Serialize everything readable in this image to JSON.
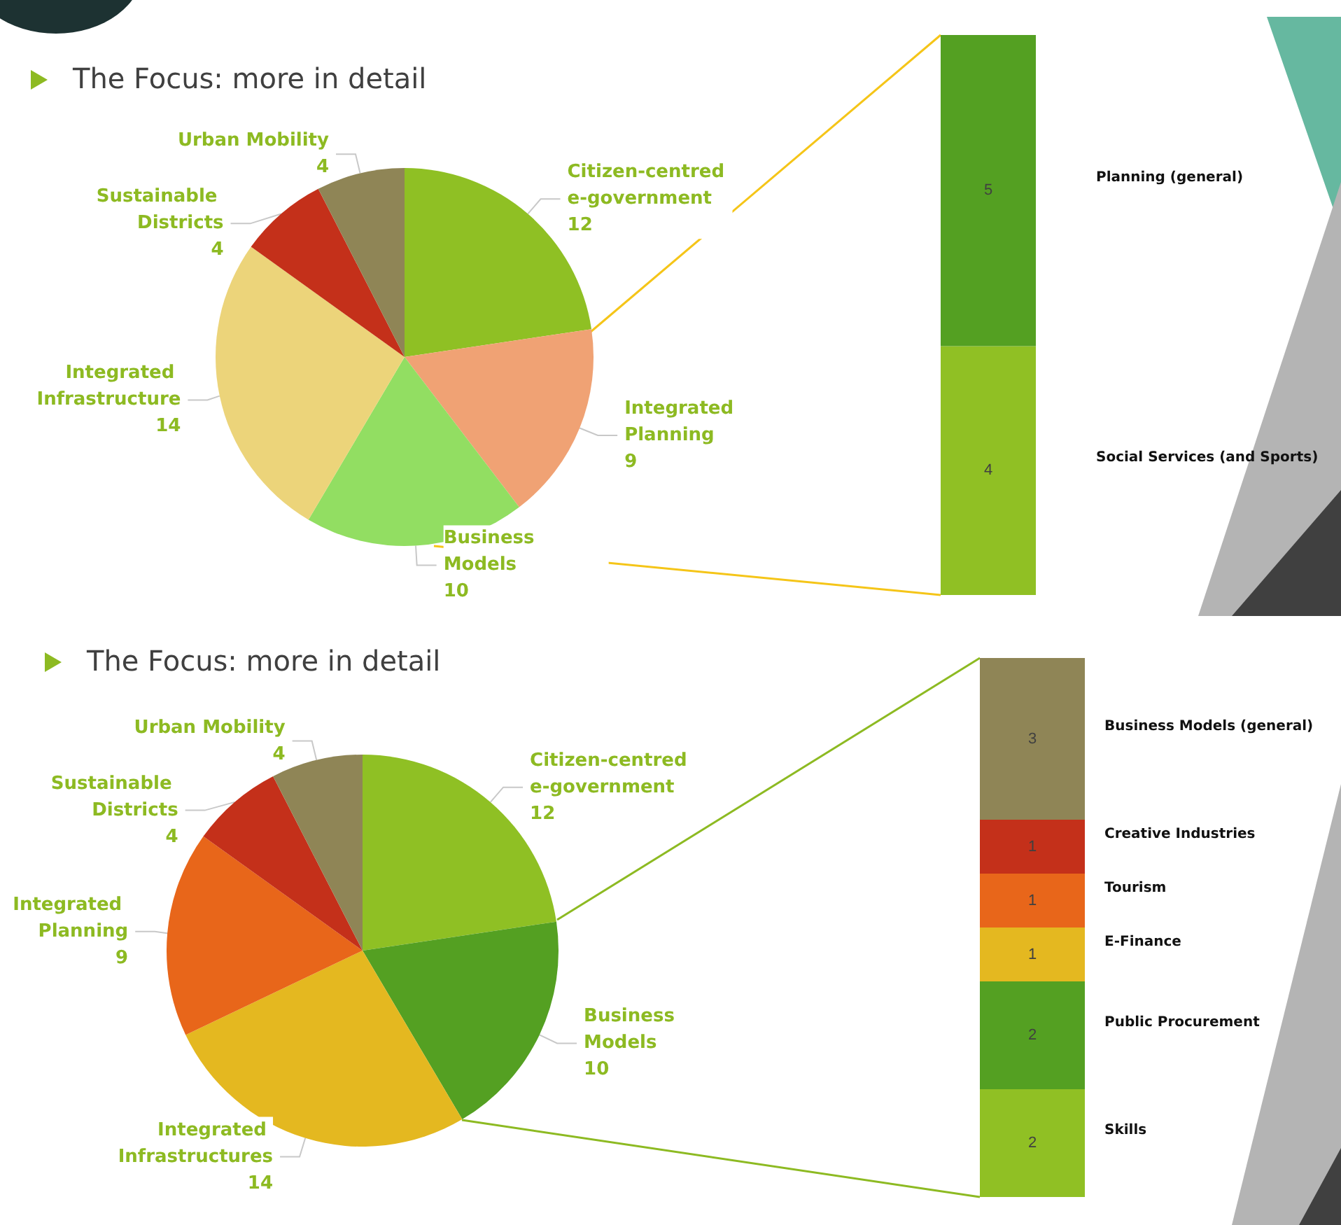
{
  "chart_data": [
    {
      "type": "pie",
      "title": "The Focus: more in detail",
      "data_labels": true,
      "categories": [
        "Citizen-centred e-government",
        "Integrated Planning",
        "Business Models",
        "Integrated Infrastructure",
        "Sustainable Districts",
        "Urban Mobility"
      ],
      "values": [
        12,
        9,
        10,
        14,
        4,
        4
      ],
      "colors": [
        "#8fc024",
        "#f0a274",
        "#92de62",
        "#ecd47a",
        "#c4301a",
        "#8f8556"
      ]
    },
    {
      "type": "bar",
      "stacked": true,
      "data_labels": true,
      "categories": [
        null
      ],
      "series": [
        {
          "name": "Social Services (and Sports)",
          "color": "#90c024",
          "values": [
            4
          ]
        },
        {
          "name": "Planning (general)",
          "color": "#54a022",
          "values": [
            5
          ]
        }
      ]
    },
    {
      "type": "pie",
      "title": "The Focus: more in detail",
      "data_labels": true,
      "categories": [
        "Citizen-centred e-government",
        "Business Models",
        "Integrated Infrastructures",
        "Integrated Planning",
        "Sustainable Districts",
        "Urban Mobility"
      ],
      "values": [
        12,
        10,
        14,
        9,
        4,
        4
      ],
      "colors": [
        "#8fc024",
        "#54a022",
        "#e4b820",
        "#e8661a",
        "#c4301a",
        "#8f8556"
      ]
    },
    {
      "type": "bar",
      "stacked": true,
      "data_labels": true,
      "categories": [
        null
      ],
      "series": [
        {
          "name": "Skills",
          "color": "#90c024",
          "values": [
            2
          ]
        },
        {
          "name": "Public Procurement",
          "color": "#54a022",
          "values": [
            2
          ]
        },
        {
          "name": "E-Finance",
          "color": "#e4b820",
          "values": [
            1
          ]
        },
        {
          "name": "Tourism",
          "color": "#e8661a",
          "values": [
            1
          ]
        },
        {
          "name": "Creative Industries",
          "color": "#c4301a",
          "values": [
            1
          ]
        },
        {
          "name": "Business Models (general)",
          "color": "#8f8556",
          "values": [
            3
          ]
        }
      ]
    }
  ]
}
